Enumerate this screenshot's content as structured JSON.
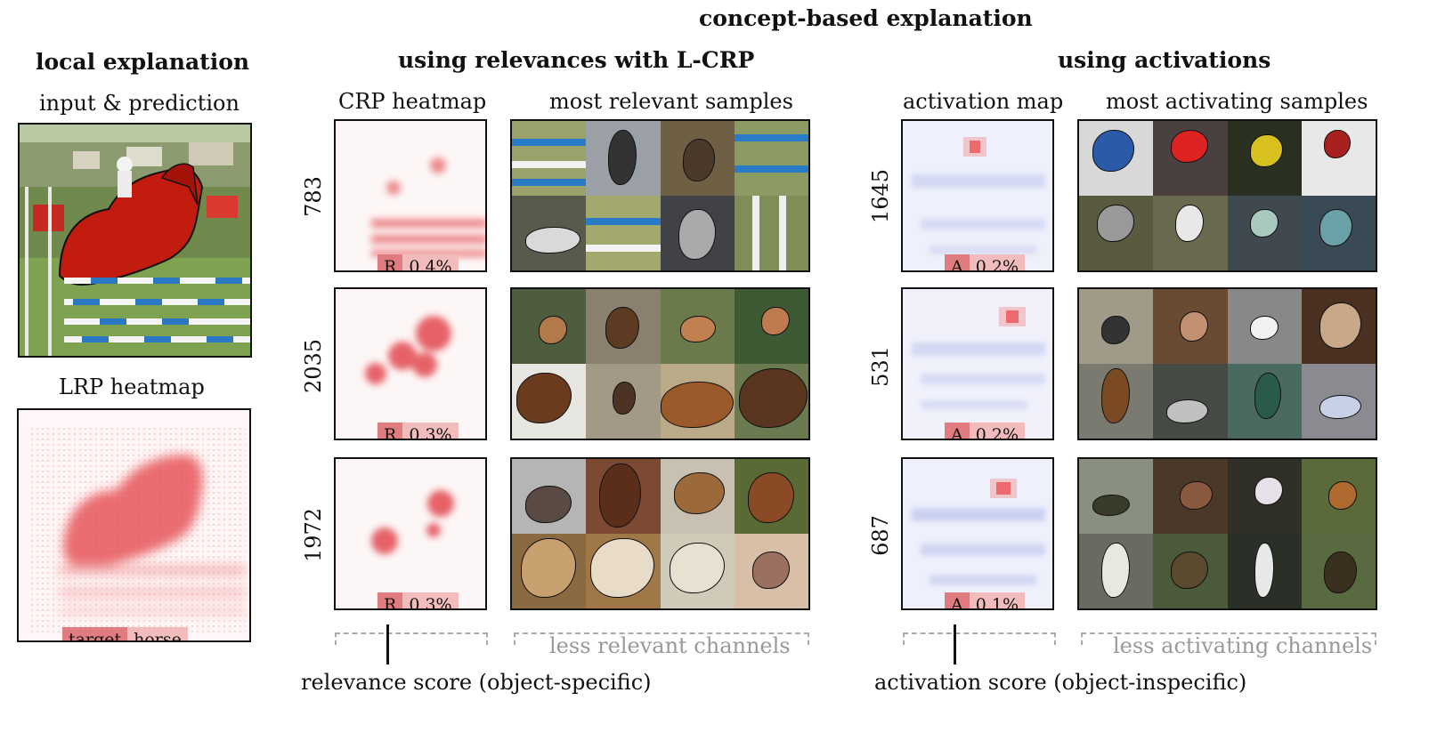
{
  "titles": {
    "concept": "concept-based explanation",
    "local": "local explanation",
    "relevance_group": "using relevances with L-CRP",
    "activation_group": "using activations"
  },
  "subtitles": {
    "input": "input & prediction",
    "lrp": "LRP heatmap",
    "crp": "CRP heatmap",
    "relevant_samples": "most relevant samples",
    "activation_map": "activation map",
    "activating_samples": "most activating samples"
  },
  "target": {
    "key": "target",
    "value": "horse"
  },
  "relevance_rows": [
    {
      "channel": "783",
      "key": "R",
      "score": "0.4%"
    },
    {
      "channel": "2035",
      "key": "R",
      "score": "0.3%"
    },
    {
      "channel": "1972",
      "key": "R",
      "score": "0.3%"
    }
  ],
  "activation_rows": [
    {
      "channel": "1645",
      "key": "A",
      "score": "0.2%"
    },
    {
      "channel": "531",
      "key": "A",
      "score": "0.2%"
    },
    {
      "channel": "687",
      "key": "A",
      "score": "0.1%"
    }
  ],
  "footer": {
    "less_relevant": "less relevant channels",
    "less_activating": "less activating channels",
    "relevance_score": "relevance score (object-specific)",
    "activation_score": "activation score (object-inspecific)"
  },
  "colors": {
    "heat_red": "#e0343a",
    "heat_blue": "#8fa0e8",
    "badge_dark": "#e07c80",
    "badge_light": "#f2bcbd"
  }
}
